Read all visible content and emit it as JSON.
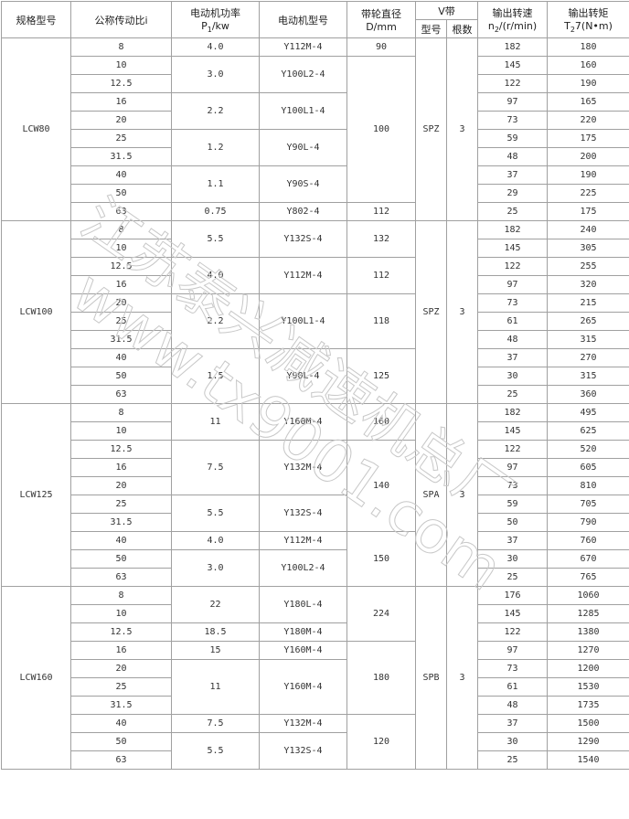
{
  "header": {
    "model": "规格型号",
    "ratio": "公称传动比i",
    "power_title": "电动机功率",
    "power_unit_main": "P",
    "power_unit_sub": "1",
    "power_unit_tail": "/kw",
    "motor": "电动机型号",
    "diameter_title": "带轮直径",
    "diameter_unit": "D/mm",
    "vbelt": "V带",
    "vbelt_type": "型号",
    "vbelt_count": "根数",
    "speed_title": "输出转速",
    "speed_unit_main": "n",
    "speed_unit_sub": "2",
    "speed_unit_tail": "/(r/min)",
    "torque_title": "输出转矩",
    "torque_unit_main": "T",
    "torque_unit_sub": "2",
    "torque_unit_tail": "7(N•m)"
  },
  "sections": [
    {
      "model": "LCW80",
      "belt_type": "SPZ",
      "belt_count": "3",
      "rows": [
        {
          "ratio": "8",
          "speed": "182",
          "torque": "180"
        },
        {
          "ratio": "10",
          "speed": "145",
          "torque": "160"
        },
        {
          "ratio": "12.5",
          "speed": "122",
          "torque": "190"
        },
        {
          "ratio": "16",
          "speed": "97",
          "torque": "165"
        },
        {
          "ratio": "20",
          "speed": "73",
          "torque": "220"
        },
        {
          "ratio": "25",
          "speed": "59",
          "torque": "175"
        },
        {
          "ratio": "31.5",
          "speed": "48",
          "torque": "200"
        },
        {
          "ratio": "40",
          "speed": "37",
          "torque": "190"
        },
        {
          "ratio": "50",
          "speed": "29",
          "torque": "225"
        },
        {
          "ratio": "63",
          "speed": "25",
          "torque": "175"
        }
      ],
      "motor_groups": [
        {
          "power": "4.0",
          "motor": "Y112M-4",
          "rows": 1
        },
        {
          "power": "3.0",
          "motor": "Y100L2-4",
          "rows": 2
        },
        {
          "power": "2.2",
          "motor": "Y100L1-4",
          "rows": 2
        },
        {
          "power": "1.2",
          "motor": "Y90L-4",
          "rows": 2
        },
        {
          "power": "1.1",
          "motor": "Y90S-4",
          "rows": 2
        },
        {
          "power": "0.75",
          "motor": "Y802-4",
          "rows": 1
        }
      ],
      "diameter_groups": [
        {
          "value": "90",
          "rows": 1
        },
        {
          "value": "100",
          "rows": 8
        },
        {
          "value": "112",
          "rows": 1
        }
      ]
    },
    {
      "model": "LCW100",
      "belt_type": "SPZ",
      "belt_count": "3",
      "rows": [
        {
          "ratio": "8",
          "speed": "182",
          "torque": "240"
        },
        {
          "ratio": "10",
          "speed": "145",
          "torque": "305"
        },
        {
          "ratio": "12.5",
          "speed": "122",
          "torque": "255"
        },
        {
          "ratio": "16",
          "speed": "97",
          "torque": "320"
        },
        {
          "ratio": "20",
          "speed": "73",
          "torque": "215"
        },
        {
          "ratio": "25",
          "speed": "61",
          "torque": "265"
        },
        {
          "ratio": "31.5",
          "speed": "48",
          "torque": "315"
        },
        {
          "ratio": "40",
          "speed": "37",
          "torque": "270"
        },
        {
          "ratio": "50",
          "speed": "30",
          "torque": "315"
        },
        {
          "ratio": "63",
          "speed": "25",
          "torque": "360"
        }
      ],
      "motor_groups": [
        {
          "power": "5.5",
          "motor": "Y132S-4",
          "rows": 2
        },
        {
          "power": "4.0",
          "motor": "Y112M-4",
          "rows": 2
        },
        {
          "power": "2.2",
          "motor": "Y100L1-4",
          "rows": 3
        },
        {
          "power": "1.5",
          "motor": "Y90L-4",
          "rows": 3
        }
      ],
      "diameter_groups": [
        {
          "value": "132",
          "rows": 2
        },
        {
          "value": "112",
          "rows": 2
        },
        {
          "value": "118",
          "rows": 3
        },
        {
          "value": "125",
          "rows": 3
        }
      ]
    },
    {
      "model": "LCW125",
      "belt_type": "SPA",
      "belt_count": "3",
      "rows": [
        {
          "ratio": "8",
          "speed": "182",
          "torque": "495"
        },
        {
          "ratio": "10",
          "speed": "145",
          "torque": "625"
        },
        {
          "ratio": "12.5",
          "speed": "122",
          "torque": "520"
        },
        {
          "ratio": "16",
          "speed": "97",
          "torque": "605"
        },
        {
          "ratio": "20",
          "speed": "73",
          "torque": "810"
        },
        {
          "ratio": "25",
          "speed": "59",
          "torque": "705"
        },
        {
          "ratio": "31.5",
          "speed": "50",
          "torque": "790"
        },
        {
          "ratio": "40",
          "speed": "37",
          "torque": "760"
        },
        {
          "ratio": "50",
          "speed": "30",
          "torque": "670"
        },
        {
          "ratio": "63",
          "speed": "25",
          "torque": "765"
        }
      ],
      "motor_groups": [
        {
          "power": "11",
          "motor": "Y160M-4",
          "rows": 2
        },
        {
          "power": "7.5",
          "motor": "Y132M-4",
          "rows": 3
        },
        {
          "power": "5.5",
          "motor": "Y132S-4",
          "rows": 2
        },
        {
          "power": "4.0",
          "motor": "Y112M-4",
          "rows": 1
        },
        {
          "power": "3.0",
          "motor": "Y100L2-4",
          "rows": 2
        }
      ],
      "diameter_groups": [
        {
          "value": "160",
          "rows": 2
        },
        {
          "value": "140",
          "rows": 5
        },
        {
          "value": "150",
          "rows": 3
        }
      ]
    },
    {
      "model": "LCW160",
      "belt_type": "SPB",
      "belt_count": "3",
      "rows": [
        {
          "ratio": "8",
          "speed": "176",
          "torque": "1060"
        },
        {
          "ratio": "10",
          "speed": "145",
          "torque": "1285"
        },
        {
          "ratio": "12.5",
          "speed": "122",
          "torque": "1380"
        },
        {
          "ratio": "16",
          "speed": "97",
          "torque": "1270"
        },
        {
          "ratio": "20",
          "speed": "73",
          "torque": "1200"
        },
        {
          "ratio": "25",
          "speed": "61",
          "torque": "1530"
        },
        {
          "ratio": "31.5",
          "speed": "48",
          "torque": "1735"
        },
        {
          "ratio": "40",
          "speed": "37",
          "torque": "1500"
        },
        {
          "ratio": "50",
          "speed": "30",
          "torque": "1290"
        },
        {
          "ratio": "63",
          "speed": "25",
          "torque": "1540"
        }
      ],
      "motor_groups": [
        {
          "power": "22",
          "motor": "Y180L-4",
          "rows": 2
        },
        {
          "power": "18.5",
          "motor": "Y180M-4",
          "rows": 1
        },
        {
          "power": "15",
          "motor": "Y160M-4",
          "rows": 1
        },
        {
          "power": "11",
          "motor": "Y160M-4",
          "rows": 3
        },
        {
          "power": "7.5",
          "motor": "Y132M-4",
          "rows": 1
        },
        {
          "power": "5.5",
          "motor": "Y132S-4",
          "rows": 2
        }
      ],
      "diameter_groups": [
        {
          "value": "224",
          "rows": 3
        },
        {
          "value": "180",
          "rows": 4
        },
        {
          "value": "120",
          "rows": 3
        }
      ]
    }
  ],
  "watermark": {
    "company": "江苏泰兴减速机总厂",
    "url": "www.tx9001.com"
  }
}
